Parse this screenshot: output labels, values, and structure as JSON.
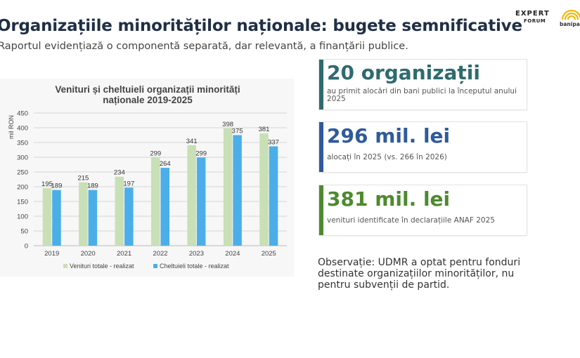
{
  "header": {
    "title": "Organizațiile minorităților naționale: bugete semnificative",
    "subtitle": "Raportul evidențiază o componentă separată, dar relevantă, a finanțării publice."
  },
  "logos": {
    "expert_forum_top": "EXPERT",
    "expert_forum_bottom": "FORUM",
    "banipartide": "banipartide"
  },
  "cards": [
    {
      "headline": "20 organizații",
      "text": "au primit alocări din bani publici la începutul anului 2025",
      "accent": "#2e6b6e"
    },
    {
      "headline": "296 mil. lei",
      "text": "alocați în 2025 (vs. 266 în 2026)",
      "accent": "#2f5a9c"
    },
    {
      "headline": "381 mil. lei",
      "text": "venituri identificate în declarațiile ANAF 2025",
      "accent": "#4d8a2e"
    }
  ],
  "observation": "Observație: UDMR a optat pentru fonduri destinate organizațiilor minorităților, nu pentru subvenții de partid.",
  "chart_data": {
    "type": "bar",
    "title": "Venituri și cheltuieli organizații minorități naționale 2019-2025",
    "title_lines": [
      "Venituri și cheltuieli organizații minorități",
      "naționale 2019-2025"
    ],
    "ylabel": "mil RON",
    "xlabel": "",
    "ylim": [
      0,
      450
    ],
    "yticks": [
      0,
      50,
      100,
      150,
      200,
      250,
      300,
      350,
      400,
      450
    ],
    "categories": [
      "2019",
      "2020",
      "2021",
      "2022",
      "2023",
      "2024",
      "2025"
    ],
    "series": [
      {
        "name": "Venituri totale - realizat",
        "values": [
          195,
          215,
          234,
          299,
          341,
          398,
          381
        ],
        "color": "#c9dfb5"
      },
      {
        "name": "Cheltuieli totale - realizat",
        "values": [
          189,
          189,
          197,
          264,
          299,
          375,
          337
        ],
        "color": "#4baee8"
      }
    ],
    "grid": true,
    "legend": "bottom"
  }
}
